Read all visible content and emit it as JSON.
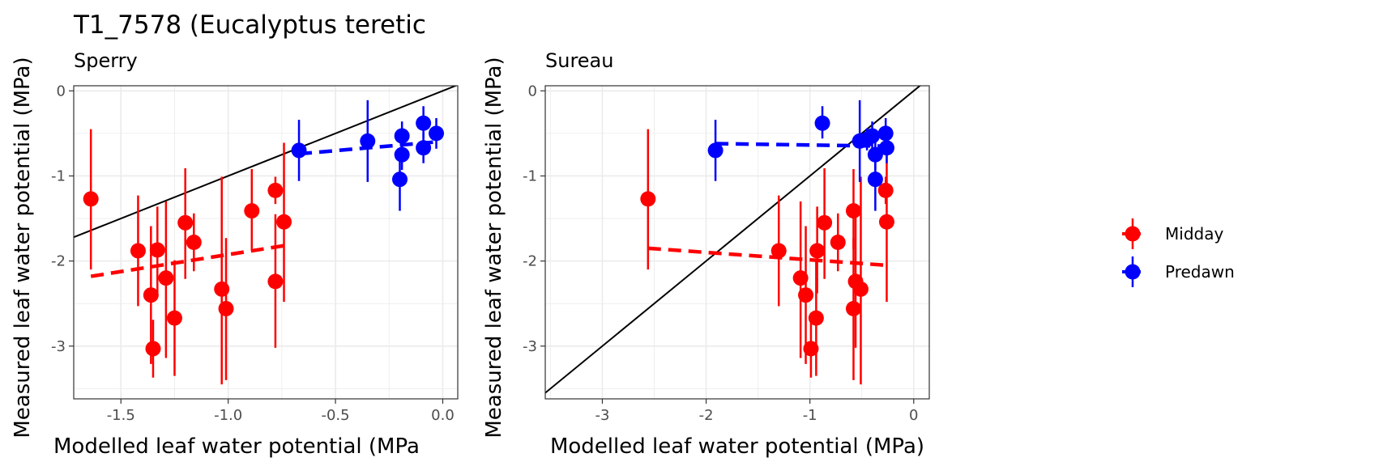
{
  "title": "T1_7578 (Eucalyptus teretic",
  "colors": {
    "Midday": "#ff0000",
    "Predawn": "#0000ff",
    "identity": "#000000",
    "grid": "#ebebeb",
    "border": "#333333"
  },
  "legend": {
    "items": [
      "Midday",
      "Predawn"
    ]
  },
  "chart_data": [
    {
      "type": "scatter",
      "title": "Sperry",
      "xlabel": "Modelled leaf water potential (MPa",
      "ylabel": "Measured leaf water potential (MPa)",
      "xlim": [
        -1.72,
        0.07
      ],
      "ylim": [
        -3.62,
        0.06
      ],
      "xticks": [
        -1.5,
        -1.0,
        -0.5,
        0.0
      ],
      "xtick_labels": [
        "-1.5",
        "-1.0",
        "-0.5",
        "0.0"
      ],
      "yticks": [
        0,
        -1,
        -2,
        -3
      ],
      "ytick_labels": [
        "0",
        "-1",
        "-2",
        "-3"
      ],
      "grid": true,
      "reference_line": "y = x",
      "series": [
        {
          "name": "Midday",
          "points": [
            {
              "x": -1.64,
              "y": -1.27,
              "lo": -2.1,
              "hi": -0.45
            },
            {
              "x": -1.42,
              "y": -1.88,
              "lo": -2.53,
              "hi": -1.23
            },
            {
              "x": -1.36,
              "y": -2.4,
              "lo": -3.21,
              "hi": -1.59
            },
            {
              "x": -1.35,
              "y": -3.03,
              "lo": -3.37,
              "hi": -2.69
            },
            {
              "x": -1.33,
              "y": -1.87,
              "lo": -2.38,
              "hi": -1.36
            },
            {
              "x": -1.29,
              "y": -2.2,
              "lo": -3.14,
              "hi": -1.3
            },
            {
              "x": -1.25,
              "y": -2.67,
              "lo": -3.35,
              "hi": -1.99
            },
            {
              "x": -1.2,
              "y": -1.55,
              "lo": -2.21,
              "hi": -0.91
            },
            {
              "x": -1.16,
              "y": -1.78,
              "lo": -2.12,
              "hi": -1.44
            },
            {
              "x": -1.03,
              "y": -2.33,
              "lo": -3.45,
              "hi": -1.01
            },
            {
              "x": -1.01,
              "y": -2.56,
              "lo": -3.4,
              "hi": -1.73
            },
            {
              "x": -0.89,
              "y": -1.41,
              "lo": -1.86,
              "hi": -0.92
            },
            {
              "x": -0.78,
              "y": -2.24,
              "lo": -3.02,
              "hi": -1.45
            },
            {
              "x": -0.78,
              "y": -1.17,
              "lo": -1.33,
              "hi": -1.01
            },
            {
              "x": -0.74,
              "y": -1.54,
              "lo": -2.48,
              "hi": -0.61
            }
          ],
          "trend": {
            "x": [
              -1.64,
              -0.74
            ],
            "y": [
              -2.18,
              -1.82
            ]
          }
        },
        {
          "name": "Predawn",
          "points": [
            {
              "x": -0.67,
              "y": -0.7,
              "lo": -1.06,
              "hi": -0.34
            },
            {
              "x": -0.35,
              "y": -0.59,
              "lo": -1.07,
              "hi": -0.11
            },
            {
              "x": -0.19,
              "y": -0.53,
              "lo": -0.7,
              "hi": -0.36
            },
            {
              "x": -0.19,
              "y": -0.75,
              "lo": -0.93,
              "hi": -0.57
            },
            {
              "x": -0.2,
              "y": -1.04,
              "lo": -1.41,
              "hi": -0.67
            },
            {
              "x": -0.09,
              "y": -0.38,
              "lo": -0.56,
              "hi": -0.18
            },
            {
              "x": -0.09,
              "y": -0.67,
              "lo": -0.85,
              "hi": -0.49
            },
            {
              "x": -0.03,
              "y": -0.5,
              "lo": -0.68,
              "hi": -0.32
            }
          ],
          "trend": {
            "x": [
              -0.67,
              -0.03
            ],
            "y": [
              -0.74,
              -0.6
            ]
          }
        }
      ]
    },
    {
      "type": "scatter",
      "title": "Sureau",
      "xlabel": "Modelled leaf water potential (MPa)",
      "ylabel": "Measured leaf water potential (MPa)",
      "xlim": [
        -3.55,
        0.15
      ],
      "ylim": [
        -3.62,
        0.06
      ],
      "xticks": [
        -3,
        -2,
        -1,
        0
      ],
      "xtick_labels": [
        "-3",
        "-2",
        "-1",
        "0"
      ],
      "yticks": [
        0,
        -1,
        -2,
        -3
      ],
      "ytick_labels": [
        "0",
        "-1",
        "-2",
        "-3"
      ],
      "grid": true,
      "reference_line": "y = x",
      "series": [
        {
          "name": "Midday",
          "points": [
            {
              "x": -2.56,
              "y": -1.27,
              "lo": -2.1,
              "hi": -0.45
            },
            {
              "x": -1.3,
              "y": -1.88,
              "lo": -2.53,
              "hi": -1.23
            },
            {
              "x": -1.09,
              "y": -2.2,
              "lo": -3.14,
              "hi": -1.3
            },
            {
              "x": -1.04,
              "y": -2.4,
              "lo": -3.21,
              "hi": -1.59
            },
            {
              "x": -0.99,
              "y": -3.03,
              "lo": -3.37,
              "hi": -2.69
            },
            {
              "x": -0.94,
              "y": -2.67,
              "lo": -3.35,
              "hi": -1.99
            },
            {
              "x": -0.93,
              "y": -1.88,
              "lo": -2.38,
              "hi": -1.36
            },
            {
              "x": -0.86,
              "y": -1.55,
              "lo": -2.21,
              "hi": -0.91
            },
            {
              "x": -0.73,
              "y": -1.78,
              "lo": -2.12,
              "hi": -1.44
            },
            {
              "x": -0.58,
              "y": -1.41,
              "lo": -1.86,
              "hi": -0.92
            },
            {
              "x": -0.58,
              "y": -2.56,
              "lo": -3.4,
              "hi": -1.73
            },
            {
              "x": -0.56,
              "y": -2.24,
              "lo": -3.02,
              "hi": -1.45
            },
            {
              "x": -0.51,
              "y": -2.33,
              "lo": -3.45,
              "hi": -1.01
            },
            {
              "x": -0.27,
              "y": -1.17,
              "lo": -1.33,
              "hi": -1.01
            },
            {
              "x": -0.26,
              "y": -1.54,
              "lo": -2.48,
              "hi": -0.61
            }
          ],
          "trend": {
            "x": [
              -2.56,
              -0.26
            ],
            "y": [
              -1.85,
              -2.05
            ]
          }
        },
        {
          "name": "Predawn",
          "points": [
            {
              "x": -1.91,
              "y": -0.7,
              "lo": -1.06,
              "hi": -0.34
            },
            {
              "x": -0.88,
              "y": -0.38,
              "lo": -0.56,
              "hi": -0.18
            },
            {
              "x": -0.52,
              "y": -0.59,
              "lo": -1.07,
              "hi": -0.11
            },
            {
              "x": -0.45,
              "y": -0.57,
              "lo": -0.7,
              "hi": -0.44
            },
            {
              "x": -0.4,
              "y": -0.53,
              "lo": -0.7,
              "hi": -0.36
            },
            {
              "x": -0.37,
              "y": -1.04,
              "lo": -1.41,
              "hi": -0.67
            },
            {
              "x": -0.37,
              "y": -0.75,
              "lo": -0.93,
              "hi": -0.57
            },
            {
              "x": -0.27,
              "y": -0.5,
              "lo": -0.68,
              "hi": -0.32
            },
            {
              "x": -0.26,
              "y": -0.67,
              "lo": -0.85,
              "hi": -0.49
            }
          ],
          "trend": {
            "x": [
              -1.91,
              -0.27
            ],
            "y": [
              -0.62,
              -0.65
            ]
          }
        }
      ]
    }
  ]
}
